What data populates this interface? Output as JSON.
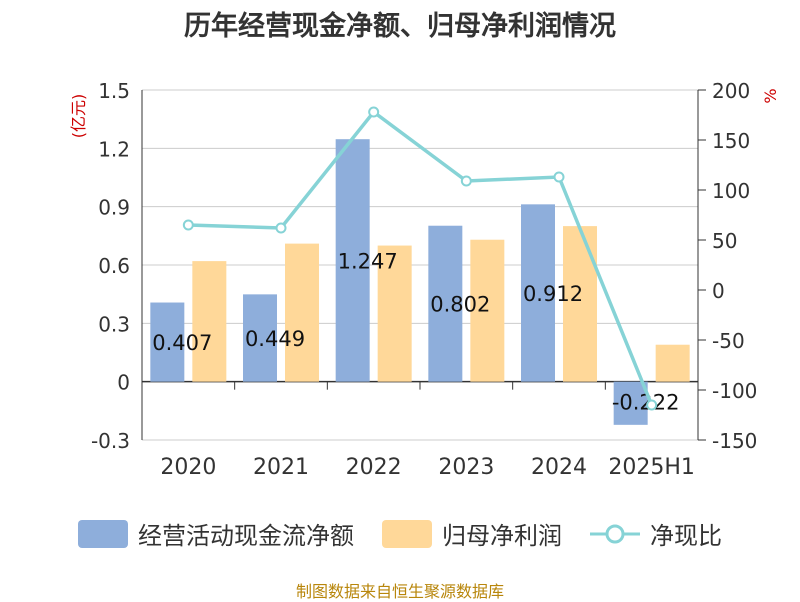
{
  "title": "历年经营现金净额、归母净利润情况",
  "source": "制图数据来自恒生聚源数据库",
  "colors": {
    "cash": "#8eaedb",
    "profit": "#ffd899",
    "ratio": "#86d3d6",
    "unit_text": "#cc0000",
    "axis": "#333333",
    "grid": "#cccccc"
  },
  "chart_data": {
    "type": "bar",
    "categories": [
      "2020",
      "2021",
      "2022",
      "2023",
      "2024",
      "2025H1"
    ],
    "left_axis": {
      "unit": "(亿元)",
      "ylim": [
        -0.3,
        1.5
      ],
      "ticks": [
        "1.5",
        "1.2",
        "0.9",
        "0.6",
        "0.3",
        "0",
        "-0.3"
      ],
      "tick_values": [
        1.5,
        1.2,
        0.9,
        0.6,
        0.3,
        0,
        -0.3
      ]
    },
    "right_axis": {
      "unit": "%",
      "ylim": [
        -150,
        200
      ],
      "ticks": [
        "200",
        "150",
        "100",
        "50",
        "0",
        "-50",
        "-100",
        "-150"
      ],
      "tick_values": [
        200,
        150,
        100,
        50,
        0,
        -50,
        -100,
        -150
      ]
    },
    "series": [
      {
        "name": "经营活动现金流净额",
        "type": "bar",
        "axis": "left",
        "values": [
          0.407,
          0.449,
          1.247,
          0.802,
          0.912,
          -0.222
        ],
        "labels": [
          "0.407",
          "0.449",
          "1.247",
          "0.802",
          "0.912",
          "-0.222"
        ]
      },
      {
        "name": "归母净利润",
        "type": "bar",
        "axis": "left",
        "values": [
          0.62,
          0.71,
          0.7,
          0.73,
          0.8,
          0.19
        ]
      },
      {
        "name": "净现比",
        "type": "line",
        "axis": "right",
        "values": [
          65,
          62,
          178,
          109,
          113,
          -115
        ]
      }
    ],
    "legend_position": "bottom",
    "grid": true
  }
}
